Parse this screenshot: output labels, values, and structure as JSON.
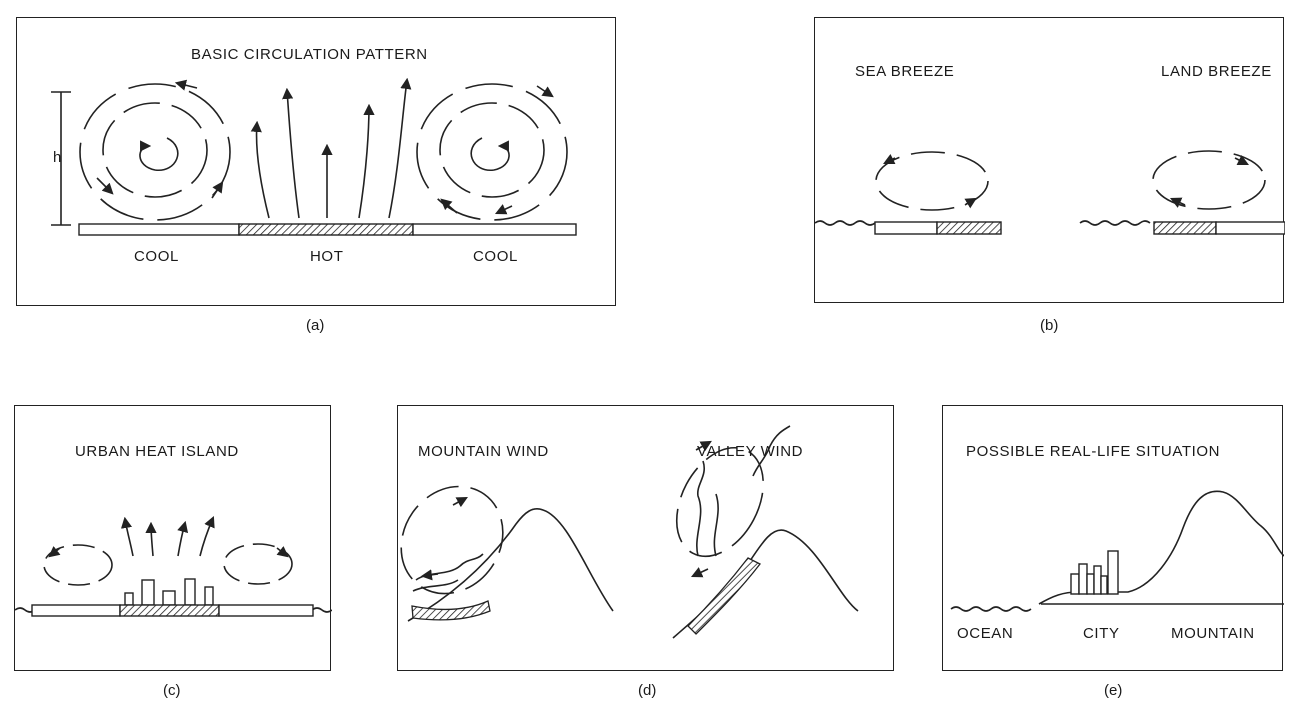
{
  "panels": {
    "a": {
      "title": "BASIC CIRCULATION PATTERN",
      "height_label": "h",
      "left_label": "COOL",
      "center_label": "HOT",
      "right_label": "COOL",
      "caption": "(a)"
    },
    "b": {
      "left_title": "SEA BREEZE",
      "right_title": "LAND BREEZE",
      "caption": "(b)"
    },
    "c": {
      "title": "URBAN HEAT ISLAND",
      "caption": "(c)"
    },
    "d": {
      "left_title": "MOUNTAIN WIND",
      "right_title": "VALLEY WIND",
      "caption": "(d)"
    },
    "e": {
      "title": "POSSIBLE REAL-LIFE SITUATION",
      "label_ocean": "OCEAN",
      "label_city": "CITY",
      "label_mountain": "MOUNTAIN",
      "caption": "(e)"
    }
  }
}
